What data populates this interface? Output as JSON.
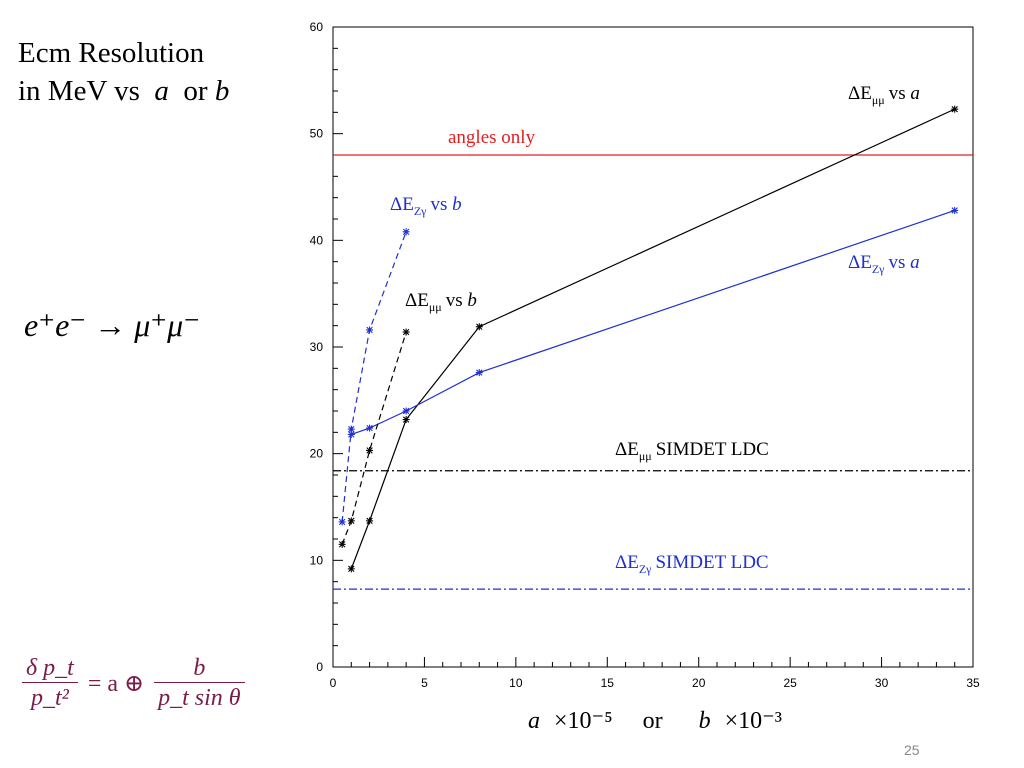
{
  "title": {
    "line1": "Ecm Resolution",
    "line2_prefix": "in MeV vs",
    "line2_a": "a",
    "line2_or": "or",
    "line2_b": "b"
  },
  "reaction": "e⁺e⁻ → μ⁺μ⁻",
  "formula": {
    "lhs_num": "δ p_t",
    "lhs_den": "p_t²",
    "eq": "= a ⊕",
    "rhs_num": "b",
    "rhs_den": "p_t sin θ"
  },
  "page_number": "25",
  "chart_data": {
    "type": "line",
    "xlim": [
      0,
      35
    ],
    "ylim": [
      0,
      60
    ],
    "x_ticks": [
      0,
      5,
      10,
      15,
      20,
      25,
      30,
      35
    ],
    "y_ticks": [
      0,
      10,
      20,
      30,
      40,
      50,
      60
    ],
    "xlabel": {
      "a": "a",
      "a_exp": "×10⁻⁵",
      "or": "or",
      "b": "b",
      "b_exp": "×10⁻³"
    },
    "grid": false,
    "series": [
      {
        "name": "ΔEμμ vs a",
        "label_main": "ΔE",
        "label_sub": "μμ",
        "label_vs": "vs",
        "label_var": "a",
        "color": "#000000",
        "style": "solid",
        "x": [
          1,
          2,
          4,
          8,
          34
        ],
        "y": [
          9.2,
          13.7,
          23.2,
          31.9,
          52.3
        ]
      },
      {
        "name": "ΔEZγ vs a",
        "label_main": "ΔE",
        "label_sub": "Zγ",
        "label_vs": "vs",
        "label_var": "a",
        "color": "#1f2fd0",
        "style": "solid",
        "x": [
          1,
          2,
          4,
          8,
          34
        ],
        "y": [
          21.8,
          22.4,
          24.0,
          27.6,
          42.8
        ]
      },
      {
        "name": "ΔEμμ vs b",
        "label_main": "ΔE",
        "label_sub": "μμ",
        "label_vs": "vs",
        "label_var": "b",
        "color": "#000000",
        "style": "dashed",
        "x": [
          0.5,
          1,
          2,
          4
        ],
        "y": [
          11.5,
          13.7,
          20.3,
          31.4
        ]
      },
      {
        "name": "ΔEZγ vs b",
        "label_main": "ΔE",
        "label_sub": "Zγ",
        "label_vs": "vs",
        "label_var": "b",
        "color": "#1f2fd0",
        "style": "dashed",
        "x": [
          0.5,
          1,
          2,
          4
        ],
        "y": [
          13.6,
          22.3,
          31.6,
          40.8
        ]
      }
    ],
    "hlines": [
      {
        "name": "angles only",
        "y": 48,
        "color": "#e02020",
        "style": "solid"
      },
      {
        "name": "ΔEμμ SIMDET LDC",
        "label_main": "ΔE",
        "label_sub": "μμ",
        "label_rest": "SIMDET LDC",
        "y": 18.4,
        "color": "#000000",
        "style": "dashdot"
      },
      {
        "name": "ΔEZγ SIMDET LDC",
        "label_main": "ΔE",
        "label_sub": "Zγ",
        "label_rest": "SIMDET LDC",
        "y": 7.3,
        "color": "#1f2fd0",
        "style": "dashdot"
      }
    ]
  }
}
